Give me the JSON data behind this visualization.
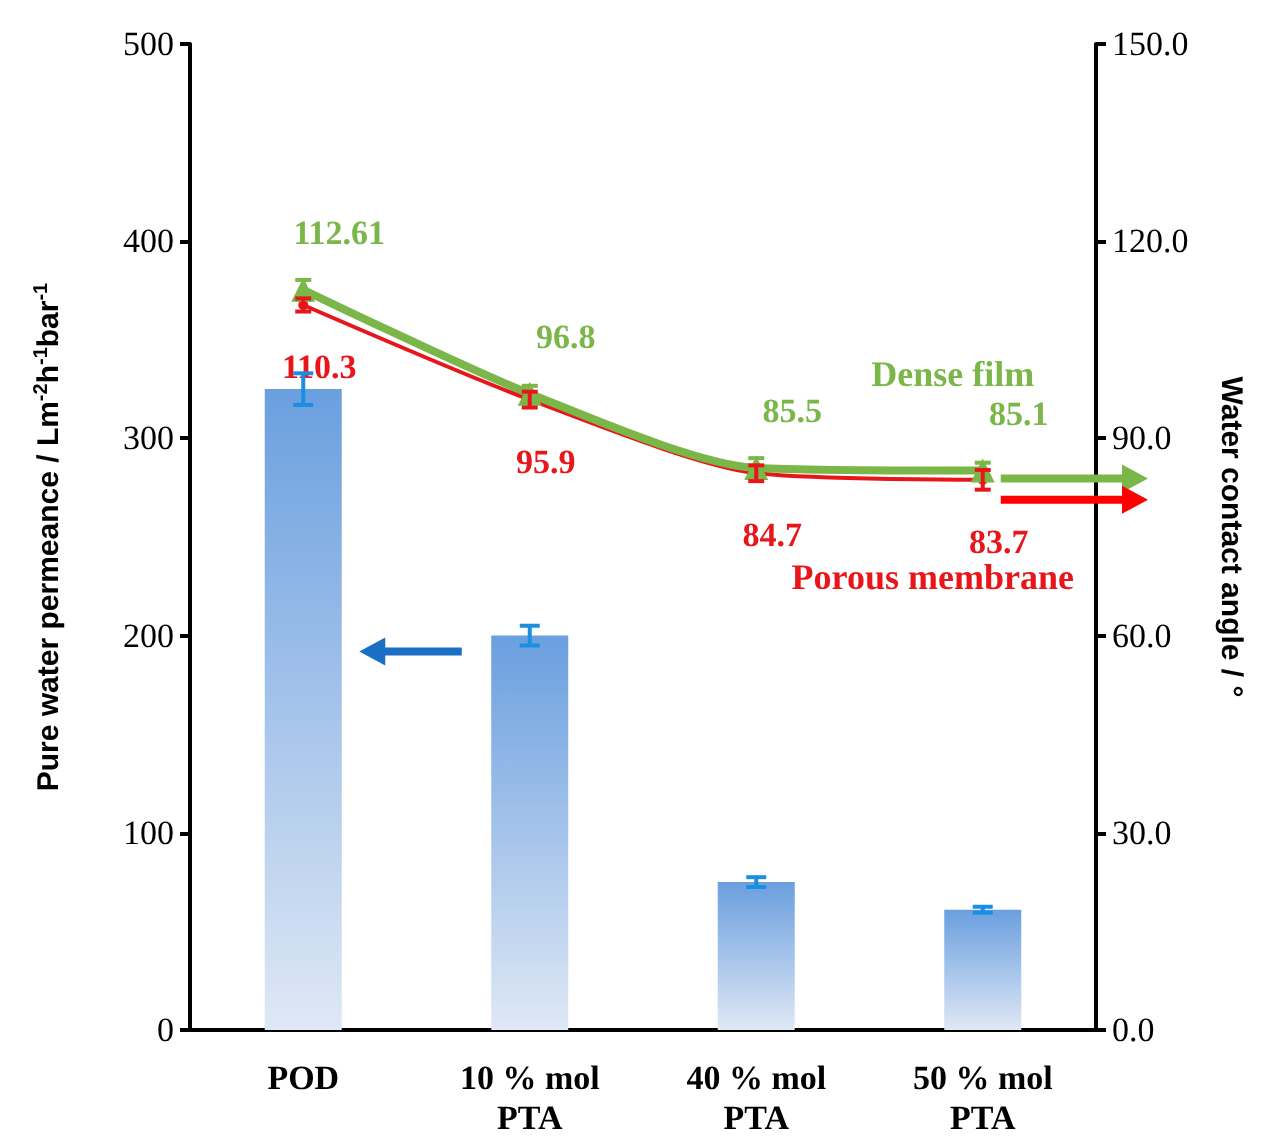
{
  "chart_data": {
    "type": "bar",
    "categories": [
      "POD",
      "10 % mol\nPTA",
      "40 % mol\nPTA",
      "50 % mol\nPTA"
    ],
    "ylabel": "Pure water permeance / Lm$^{-2}$h$^{-1}$bar$^{-1}$",
    "y2label": "Water contact angle / °",
    "series": [
      {
        "color": "#6a9fdf",
        "values": [
          325,
          200,
          75,
          61
        ],
        "errors": [
          8,
          5,
          2.5,
          1.5
        ]
      },
      {
        "type": "line",
        "name": "Dense film",
        "color": "#7ab648",
        "axis": "y2",
        "marker": "triangle",
        "values": [
          112.61,
          96.8,
          85.5,
          85.1
        ],
        "errors": [
          1.5,
          1.2,
          1.5,
          1.2
        ],
        "data_labels": true
      },
      {
        "type": "line",
        "name": "Porous membrane",
        "color": "#e8161b",
        "axis": "y2",
        "marker": "circle",
        "values": [
          110.3,
          95.9,
          84.7,
          83.7
        ],
        "errors": [
          1.0,
          1.2,
          1.2,
          1.5
        ],
        "data_labels": true
      }
    ],
    "ylim": [
      0,
      500
    ],
    "yticks": [
      0,
      100,
      200,
      300,
      400,
      500
    ],
    "y2lim": [
      0,
      150
    ],
    "y2ticks": [
      {
        "value": 0,
        "label": "0.0"
      },
      {
        "value": 30,
        "label": "30.0"
      },
      {
        "value": 60,
        "label": "60.0"
      },
      {
        "value": 90,
        "label": "90.0"
      },
      {
        "value": 120,
        "label": "120.0"
      },
      {
        "value": 150,
        "label": "150.0"
      }
    ],
    "grid": false,
    "legend": false
  }
}
